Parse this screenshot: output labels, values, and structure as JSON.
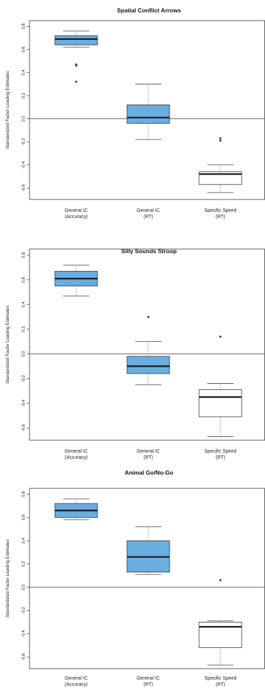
{
  "chart_data": [
    {
      "type": "box",
      "title": "Spatial Conflict Arrows",
      "ylabel": "Standardized Factor Loading Estimates",
      "ylim": [
        -0.7,
        0.85
      ],
      "yticks": [
        "-0.6",
        "-0.4",
        "-0.2",
        "0.0",
        "0.2",
        "0.4",
        "0.6",
        "0.8"
      ],
      "reference_line": 0,
      "categories": [
        [
          "General IC",
          "(Accuracy)"
        ],
        [
          "General IC",
          "(RT)"
        ],
        [
          "Specific Speed",
          "(RT)"
        ]
      ],
      "boxes": [
        {
          "fill": "#6aaee0",
          "whisker_low": 0.62,
          "q1": 0.64,
          "median": 0.69,
          "q3": 0.72,
          "whisker_high": 0.76,
          "outliers": [
            0.47,
            0.46,
            0.32
          ]
        },
        {
          "fill": "#6aaee0",
          "whisker_low": -0.18,
          "q1": -0.04,
          "median": 0.01,
          "q3": 0.12,
          "whisker_high": 0.3,
          "outliers": []
        },
        {
          "fill": "#ffffff",
          "whisker_low": -0.64,
          "q1": -0.57,
          "median": -0.48,
          "q3": -0.46,
          "whisker_high": -0.4,
          "outliers": [
            -0.17,
            -0.19
          ]
        }
      ]
    },
    {
      "type": "box",
      "title": "Silly Sounds Stroop",
      "ylabel": "Standardized Factor Loading Estimates",
      "ylim": [
        -0.7,
        0.85
      ],
      "yticks": [
        "-0.6",
        "-0.4",
        "-0.2",
        "0.0",
        "0.2",
        "0.4",
        "0.6",
        "0.8"
      ],
      "reference_line": 0,
      "categories": [
        [
          "General IC",
          "(Accuracy)"
        ],
        [
          "General IC",
          "(RT)"
        ],
        [
          "Specific Speed",
          "(RT)"
        ]
      ],
      "boxes": [
        {
          "fill": "#6aaee0",
          "whisker_low": 0.47,
          "q1": 0.55,
          "median": 0.61,
          "q3": 0.67,
          "whisker_high": 0.72,
          "outliers": []
        },
        {
          "fill": "#6aaee0",
          "whisker_low": -0.25,
          "q1": -0.16,
          "median": -0.1,
          "q3": -0.02,
          "whisker_high": 0.1,
          "outliers": [
            0.3
          ]
        },
        {
          "fill": "#ffffff",
          "whisker_low": -0.67,
          "q1": -0.51,
          "median": -0.35,
          "q3": -0.29,
          "whisker_high": -0.24,
          "outliers": [
            0.14
          ]
        }
      ]
    },
    {
      "type": "box",
      "title": "Animal Go/No-Go",
      "ylabel": "Standardized Factor Loading Estimates",
      "ylim": [
        -0.7,
        0.85
      ],
      "yticks": [
        "-0.6",
        "-0.4",
        "-0.2",
        "0.0",
        "0.2",
        "0.4",
        "0.6",
        "0.8"
      ],
      "reference_line": 0,
      "categories": [
        [
          "General IC",
          "(Accuracy)"
        ],
        [
          "General IC",
          "(RT)"
        ],
        [
          "Specific Speed",
          "(RT)"
        ]
      ],
      "boxes": [
        {
          "fill": "#6aaee0",
          "whisker_low": 0.58,
          "q1": 0.6,
          "median": 0.66,
          "q3": 0.72,
          "whisker_high": 0.76,
          "outliers": []
        },
        {
          "fill": "#6aaee0",
          "whisker_low": 0.11,
          "q1": 0.13,
          "median": 0.26,
          "q3": 0.4,
          "whisker_high": 0.52,
          "outliers": []
        },
        {
          "fill": "#ffffff",
          "whisker_low": -0.67,
          "q1": -0.52,
          "median": -0.34,
          "q3": -0.3,
          "whisker_high": -0.29,
          "outliers": [
            0.06
          ]
        }
      ]
    }
  ]
}
